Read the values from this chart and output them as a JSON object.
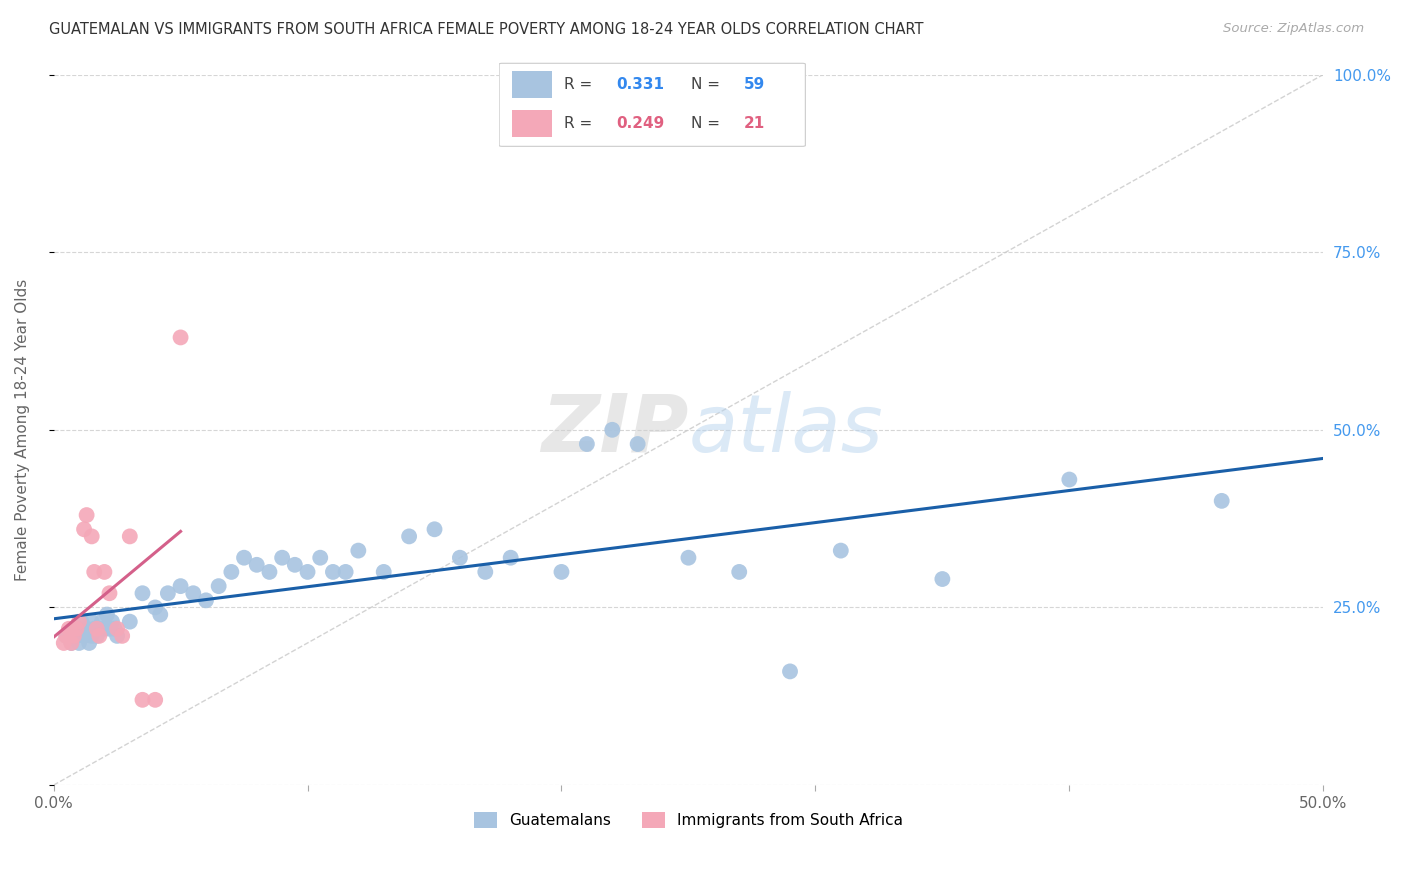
{
  "title": "GUATEMALAN VS IMMIGRANTS FROM SOUTH AFRICA FEMALE POVERTY AMONG 18-24 YEAR OLDS CORRELATION CHART",
  "source": "Source: ZipAtlas.com",
  "ylabel": "Female Poverty Among 18-24 Year Olds",
  "xlim": [
    0.0,
    0.5
  ],
  "ylim": [
    0.0,
    1.0
  ],
  "xticks": [
    0.0,
    0.1,
    0.2,
    0.3,
    0.4,
    0.5
  ],
  "xticklabels": [
    "0.0%",
    "",
    "",
    "",
    "",
    "50.0%"
  ],
  "yticks_right": [
    0.0,
    0.25,
    0.5,
    0.75,
    1.0
  ],
  "yticklabels_right": [
    "",
    "25.0%",
    "50.0%",
    "75.0%",
    "100.0%"
  ],
  "guatemalan_R": 0.331,
  "guatemalan_N": 59,
  "southafrica_R": 0.249,
  "southafrica_N": 21,
  "guatemalan_color": "#a8c4e0",
  "southafrica_color": "#f4a8b8",
  "trendline_guatemalan_color": "#1a5fa8",
  "trendline_southafrica_color": "#d4608a",
  "diagonal_color": "#c8c8c8",
  "background_color": "#ffffff",
  "grid_color": "#cccccc",
  "watermark": "ZIPatlas",
  "guatemalan_x": [
    0.005,
    0.007,
    0.008,
    0.009,
    0.01,
    0.01,
    0.011,
    0.012,
    0.013,
    0.014,
    0.015,
    0.015,
    0.016,
    0.017,
    0.018,
    0.019,
    0.02,
    0.021,
    0.022,
    0.023,
    0.024,
    0.025,
    0.03,
    0.035,
    0.04,
    0.042,
    0.045,
    0.05,
    0.055,
    0.06,
    0.065,
    0.07,
    0.075,
    0.08,
    0.085,
    0.09,
    0.095,
    0.1,
    0.105,
    0.11,
    0.115,
    0.12,
    0.13,
    0.14,
    0.15,
    0.16,
    0.17,
    0.18,
    0.2,
    0.21,
    0.22,
    0.23,
    0.25,
    0.27,
    0.29,
    0.31,
    0.35,
    0.4,
    0.46
  ],
  "guatemalan_y": [
    0.21,
    0.2,
    0.22,
    0.21,
    0.22,
    0.2,
    0.23,
    0.21,
    0.22,
    0.2,
    0.21,
    0.23,
    0.22,
    0.21,
    0.22,
    0.23,
    0.22,
    0.24,
    0.22,
    0.23,
    0.22,
    0.21,
    0.23,
    0.27,
    0.25,
    0.24,
    0.27,
    0.28,
    0.27,
    0.26,
    0.28,
    0.3,
    0.32,
    0.31,
    0.3,
    0.32,
    0.31,
    0.3,
    0.32,
    0.3,
    0.3,
    0.33,
    0.3,
    0.35,
    0.36,
    0.32,
    0.3,
    0.32,
    0.3,
    0.48,
    0.5,
    0.48,
    0.32,
    0.3,
    0.16,
    0.33,
    0.29,
    0.43,
    0.4
  ],
  "southafrica_x": [
    0.004,
    0.005,
    0.006,
    0.007,
    0.008,
    0.009,
    0.01,
    0.012,
    0.013,
    0.015,
    0.016,
    0.017,
    0.018,
    0.02,
    0.022,
    0.025,
    0.027,
    0.03,
    0.035,
    0.04,
    0.05
  ],
  "southafrica_y": [
    0.2,
    0.21,
    0.22,
    0.2,
    0.21,
    0.22,
    0.23,
    0.36,
    0.38,
    0.35,
    0.3,
    0.22,
    0.21,
    0.3,
    0.27,
    0.22,
    0.21,
    0.35,
    0.12,
    0.12,
    0.63
  ]
}
